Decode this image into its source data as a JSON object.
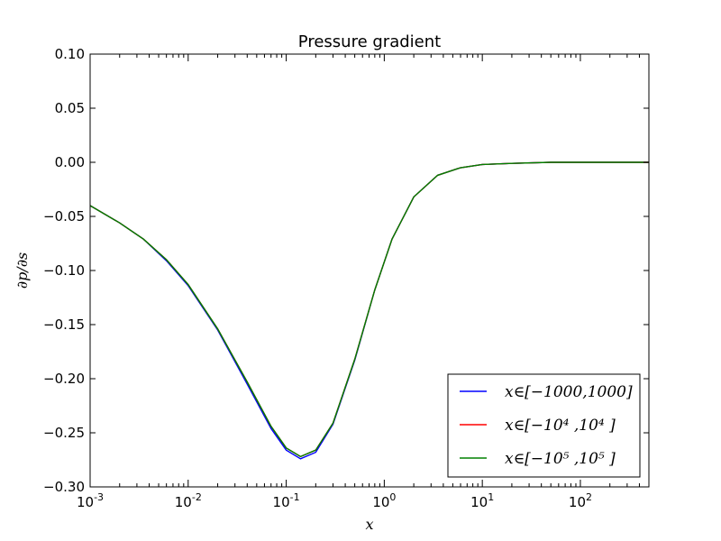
{
  "chart_data": {
    "type": "line",
    "title": "Pressure gradient",
    "xlabel": "x",
    "ylabel": "∂p/∂s",
    "xscale": "log",
    "xlim": [
      0.001,
      500
    ],
    "ylim": [
      -0.3,
      0.1
    ],
    "grid": false,
    "legend_position": "lower-right",
    "y_ticks": [
      0.1,
      0.05,
      0.0,
      -0.05,
      -0.1,
      -0.15,
      -0.2,
      -0.25,
      -0.3
    ],
    "y_tick_labels": [
      "0.10",
      "0.05",
      "0.00",
      "−0.05",
      "−0.10",
      "−0.15",
      "−0.20",
      "−0.25",
      "−0.30"
    ],
    "x_ticks": [
      {
        "value": 0.001,
        "base": "10",
        "exp": "-3"
      },
      {
        "value": 0.01,
        "base": "10",
        "exp": "-2"
      },
      {
        "value": 0.1,
        "base": "10",
        "exp": "-1"
      },
      {
        "value": 1,
        "base": "10",
        "exp": "0"
      },
      {
        "value": 10,
        "base": "10",
        "exp": "1"
      },
      {
        "value": 100,
        "base": "10",
        "exp": "2"
      }
    ],
    "series": [
      {
        "name": "x∈[−1000,1000]",
        "color": "#0000ff",
        "x": [
          0.001,
          0.002,
          0.0035,
          0.006,
          0.01,
          0.02,
          0.04,
          0.07,
          0.1,
          0.14,
          0.2,
          0.3,
          0.5,
          0.8,
          1.2,
          2,
          3.5,
          6,
          10,
          20,
          50,
          100,
          500
        ],
        "y": [
          -0.04,
          -0.056,
          -0.071,
          -0.091,
          -0.114,
          -0.155,
          -0.205,
          -0.246,
          -0.266,
          -0.274,
          -0.268,
          -0.242,
          -0.183,
          -0.118,
          -0.071,
          -0.032,
          -0.012,
          -0.005,
          -0.002,
          -0.001,
          0.0,
          0.0,
          0.0
        ]
      },
      {
        "name": "x∈[−10⁴ ,10⁴ ]",
        "color": "#ff0000",
        "x": [
          0.001,
          0.002,
          0.0035,
          0.006,
          0.01,
          0.02,
          0.04,
          0.07,
          0.1,
          0.14,
          0.2,
          0.3,
          0.5,
          0.8,
          1.2,
          2,
          3.5,
          6,
          10,
          20,
          50,
          100,
          500
        ],
        "y": [
          -0.04,
          -0.056,
          -0.071,
          -0.09,
          -0.113,
          -0.154,
          -0.203,
          -0.244,
          -0.264,
          -0.272,
          -0.266,
          -0.241,
          -0.182,
          -0.118,
          -0.071,
          -0.032,
          -0.012,
          -0.005,
          -0.002,
          -0.001,
          0.0,
          0.0,
          0.0
        ]
      },
      {
        "name": "x∈[−10⁵ ,10⁵ ]",
        "color": "#008000",
        "x": [
          0.001,
          0.002,
          0.0035,
          0.006,
          0.01,
          0.02,
          0.04,
          0.07,
          0.1,
          0.14,
          0.2,
          0.3,
          0.5,
          0.8,
          1.2,
          2,
          3.5,
          6,
          10,
          20,
          50,
          100,
          500
        ],
        "y": [
          -0.04,
          -0.056,
          -0.071,
          -0.09,
          -0.113,
          -0.154,
          -0.203,
          -0.244,
          -0.264,
          -0.272,
          -0.266,
          -0.241,
          -0.182,
          -0.118,
          -0.071,
          -0.032,
          -0.012,
          -0.005,
          -0.002,
          -0.001,
          0.0,
          0.0,
          0.0
        ]
      }
    ]
  }
}
